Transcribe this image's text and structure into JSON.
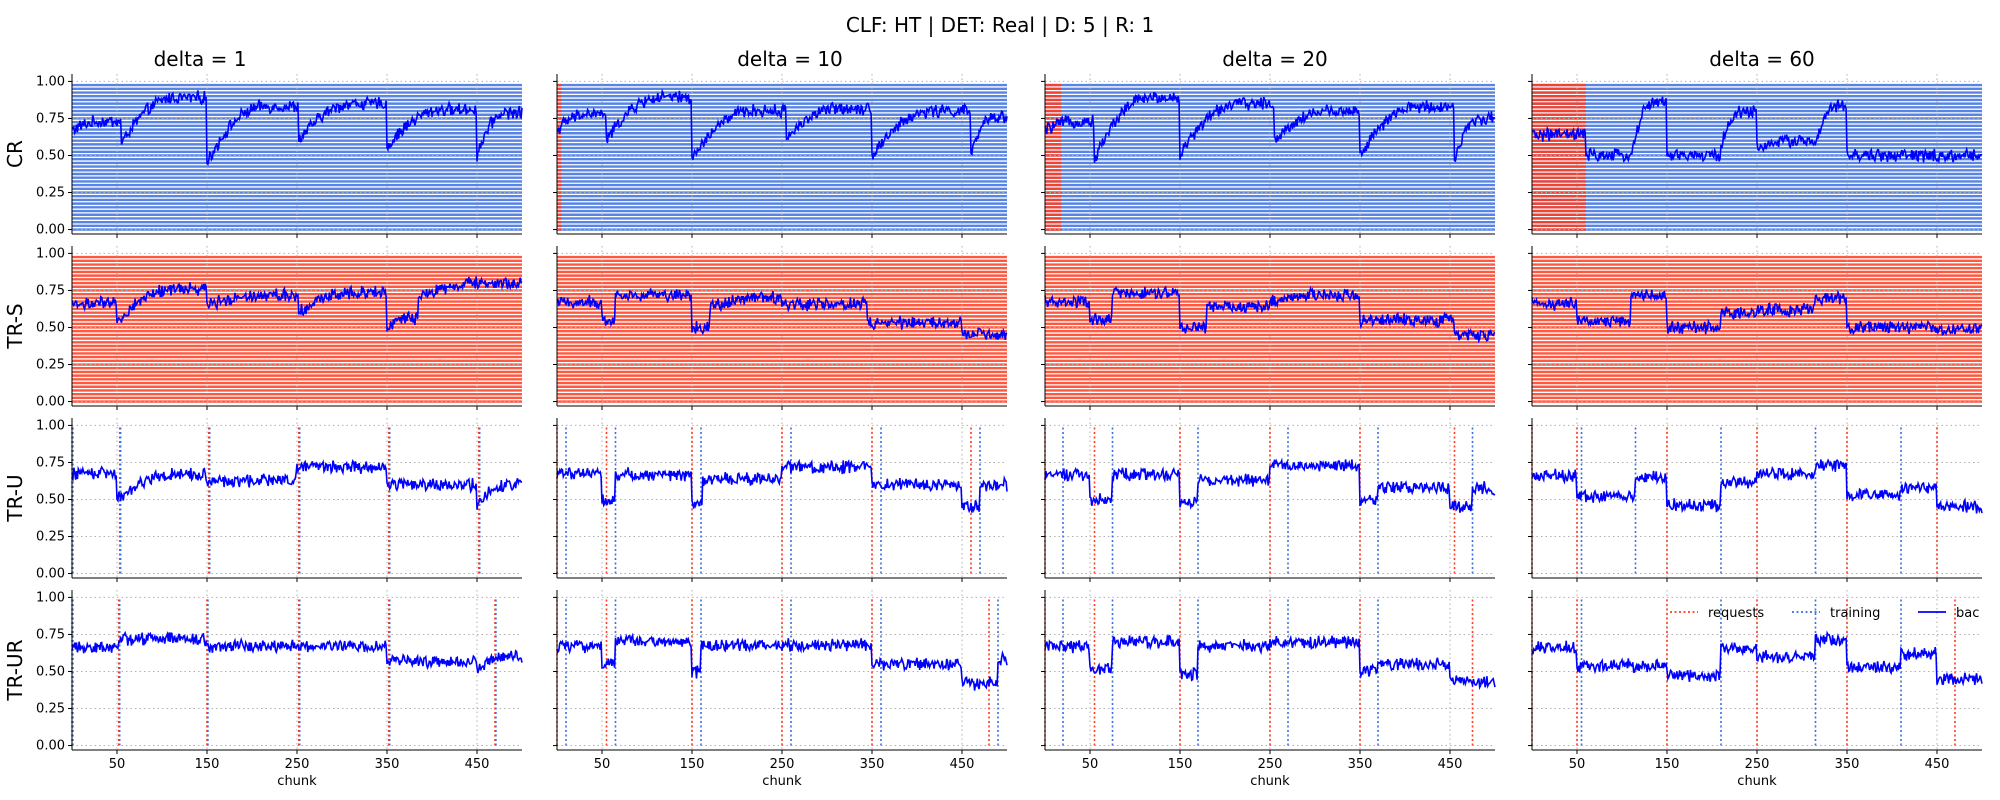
{
  "title": "CLF: HT | DET: Real | D: 5 | R: 1",
  "columns": [
    "delta = 1",
    "delta = 10",
    "delta = 20",
    "delta = 60"
  ],
  "rows": [
    "CR",
    "TR-S",
    "TR-U",
    "TR-UR"
  ],
  "xlabel": "chunk",
  "x_ticks": [
    "50",
    "150",
    "250",
    "350",
    "450"
  ],
  "y_ticks": [
    "0.00",
    "0.25",
    "0.50",
    "0.75",
    "1.00"
  ],
  "legend": {
    "requests": "requests",
    "training": "training",
    "bac": "bac"
  },
  "colors": {
    "requests": "#ff3b1f",
    "training": "#3b6fe0",
    "bac": "#0000ff",
    "grid": "#b0b0b0"
  },
  "chart_data": {
    "type": "line",
    "xlim": [
      0,
      500
    ],
    "ylim": [
      -0.03,
      1.05
    ],
    "grid": true,
    "legend_position": "top-right of bottom-right panel",
    "panels": [
      {
        "row": "CR",
        "column": "delta = 1",
        "shading": "training",
        "requests": [],
        "training": [],
        "bac_segments": [
          [
            0,
            0.67,
            0.73
          ],
          [
            55,
            0.58,
            0.89
          ],
          [
            150,
            0.45,
            0.83
          ],
          [
            252,
            0.6,
            0.85
          ],
          [
            350,
            0.55,
            0.81
          ],
          [
            450,
            0.5,
            0.79
          ]
        ]
      },
      {
        "row": "CR",
        "column": "delta = 10",
        "shading": "training",
        "shade_requests_until": 5,
        "requests": [],
        "training": [],
        "bac_segments": [
          [
            0,
            0.67,
            0.78
          ],
          [
            55,
            0.6,
            0.89
          ],
          [
            150,
            0.47,
            0.8
          ],
          [
            255,
            0.62,
            0.82
          ],
          [
            350,
            0.5,
            0.8
          ],
          [
            460,
            0.5,
            0.76
          ]
        ]
      },
      {
        "row": "CR",
        "column": "delta = 20",
        "shading": "training",
        "shade_requests_until": 18,
        "requests": [],
        "training": [],
        "bac_segments": [
          [
            0,
            0.67,
            0.73
          ],
          [
            55,
            0.47,
            0.89
          ],
          [
            150,
            0.5,
            0.85
          ],
          [
            255,
            0.6,
            0.8
          ],
          [
            350,
            0.5,
            0.83
          ],
          [
            455,
            0.47,
            0.75
          ]
        ]
      },
      {
        "row": "CR",
        "column": "delta = 60",
        "shading": "training",
        "shade_requests_until": 60,
        "requests": [],
        "training": [],
        "bac_segments": [
          [
            0,
            0.64,
            0.64
          ],
          [
            60,
            0.5,
            0.5
          ],
          [
            110,
            0.5,
            0.86
          ],
          [
            150,
            0.5,
            0.5
          ],
          [
            210,
            0.57,
            0.8
          ],
          [
            250,
            0.55,
            0.6
          ],
          [
            315,
            0.55,
            0.83
          ],
          [
            350,
            0.5,
            0.5
          ],
          [
            450,
            0.47,
            0.5
          ]
        ]
      },
      {
        "row": "TR-S",
        "column": "delta = 1",
        "shading": "requests",
        "requests": [],
        "training": [],
        "bac_segments": [
          [
            0,
            0.66,
            0.66
          ],
          [
            50,
            0.53,
            0.76
          ],
          [
            150,
            0.65,
            0.72
          ],
          [
            252,
            0.6,
            0.74
          ],
          [
            350,
            0.5,
            0.56
          ],
          [
            385,
            0.7,
            0.8
          ]
        ]
      },
      {
        "row": "TR-S",
        "column": "delta = 10",
        "shading": "requests",
        "requests": [],
        "training": [],
        "bac_segments": [
          [
            0,
            0.67,
            0.67
          ],
          [
            50,
            0.55,
            0.55
          ],
          [
            65,
            0.72,
            0.72
          ],
          [
            150,
            0.5,
            0.5
          ],
          [
            170,
            0.63,
            0.7
          ],
          [
            250,
            0.66,
            0.66
          ],
          [
            345,
            0.53,
            0.53
          ],
          [
            450,
            0.45,
            0.45
          ]
        ]
      },
      {
        "row": "TR-S",
        "column": "delta = 20",
        "shading": "requests",
        "requests": [],
        "training": [],
        "bac_segments": [
          [
            0,
            0.67,
            0.67
          ],
          [
            50,
            0.55,
            0.55
          ],
          [
            75,
            0.73,
            0.73
          ],
          [
            150,
            0.5,
            0.5
          ],
          [
            180,
            0.64,
            0.64
          ],
          [
            250,
            0.67,
            0.72
          ],
          [
            350,
            0.55,
            0.55
          ],
          [
            455,
            0.45,
            0.45
          ]
        ]
      },
      {
        "row": "TR-S",
        "column": "delta = 60",
        "shading": "requests",
        "requests": [],
        "training": [],
        "bac_segments": [
          [
            0,
            0.66,
            0.66
          ],
          [
            50,
            0.54,
            0.54
          ],
          [
            110,
            0.72,
            0.72
          ],
          [
            150,
            0.5,
            0.5
          ],
          [
            210,
            0.6,
            0.6
          ],
          [
            250,
            0.62,
            0.62
          ],
          [
            315,
            0.7,
            0.7
          ],
          [
            350,
            0.5,
            0.5
          ],
          [
            450,
            0.47,
            0.5
          ]
        ]
      },
      {
        "row": "TR-U",
        "column": "delta = 1",
        "shading": "none",
        "requests": [
          0,
          53,
          152,
          252,
          352,
          452
        ],
        "training": [
          1,
          54,
          153,
          253,
          353,
          453
        ],
        "bac_segments": [
          [
            0,
            0.68,
            0.68
          ],
          [
            50,
            0.5,
            0.67
          ],
          [
            150,
            0.62,
            0.63
          ],
          [
            250,
            0.72,
            0.72
          ],
          [
            350,
            0.6,
            0.6
          ],
          [
            450,
            0.47,
            0.6
          ]
        ]
      },
      {
        "row": "TR-U",
        "column": "delta = 10",
        "shading": "none",
        "requests": [
          0,
          55,
          150,
          250,
          350,
          460
        ],
        "training": [
          10,
          65,
          160,
          260,
          360,
          470
        ],
        "bac_segments": [
          [
            0,
            0.68,
            0.68
          ],
          [
            50,
            0.5,
            0.5
          ],
          [
            65,
            0.67,
            0.67
          ],
          [
            150,
            0.48,
            0.48
          ],
          [
            162,
            0.64,
            0.64
          ],
          [
            250,
            0.72,
            0.72
          ],
          [
            350,
            0.6,
            0.6
          ],
          [
            450,
            0.45,
            0.45
          ],
          [
            470,
            0.6,
            0.6
          ]
        ]
      },
      {
        "row": "TR-U",
        "column": "delta = 20",
        "shading": "none",
        "requests": [
          0,
          55,
          150,
          250,
          350,
          455
        ],
        "training": [
          20,
          75,
          170,
          270,
          370,
          475
        ],
        "bac_segments": [
          [
            0,
            0.67,
            0.67
          ],
          [
            50,
            0.5,
            0.5
          ],
          [
            75,
            0.67,
            0.67
          ],
          [
            150,
            0.48,
            0.48
          ],
          [
            170,
            0.63,
            0.63
          ],
          [
            250,
            0.73,
            0.73
          ],
          [
            350,
            0.5,
            0.5
          ],
          [
            370,
            0.58,
            0.58
          ],
          [
            450,
            0.45,
            0.45
          ],
          [
            475,
            0.58,
            0.58
          ]
        ]
      },
      {
        "row": "TR-U",
        "column": "delta = 60",
        "shading": "none",
        "requests": [
          0,
          50,
          150,
          250,
          350,
          450
        ],
        "training": [
          55,
          115,
          210,
          315,
          410
        ],
        "bac_segments": [
          [
            0,
            0.66,
            0.66
          ],
          [
            50,
            0.52,
            0.52
          ],
          [
            115,
            0.65,
            0.65
          ],
          [
            150,
            0.46,
            0.46
          ],
          [
            210,
            0.62,
            0.62
          ],
          [
            250,
            0.67,
            0.67
          ],
          [
            315,
            0.73,
            0.73
          ],
          [
            350,
            0.53,
            0.53
          ],
          [
            410,
            0.58,
            0.58
          ],
          [
            450,
            0.45,
            0.45
          ]
        ]
      },
      {
        "row": "TR-UR",
        "column": "delta = 1",
        "shading": "none",
        "requests": [
          0,
          52,
          150,
          252,
          352,
          470
        ],
        "training": [
          1,
          53,
          151,
          253,
          353,
          471
        ],
        "bac_segments": [
          [
            0,
            0.66,
            0.66
          ],
          [
            52,
            0.72,
            0.72
          ],
          [
            150,
            0.67,
            0.67
          ],
          [
            250,
            0.67,
            0.67
          ],
          [
            350,
            0.57,
            0.57
          ],
          [
            450,
            0.5,
            0.6
          ]
        ]
      },
      {
        "row": "TR-UR",
        "column": "delta = 10",
        "shading": "none",
        "requests": [
          0,
          55,
          150,
          250,
          350,
          480
        ],
        "training": [
          10,
          65,
          160,
          260,
          360,
          490
        ],
        "bac_segments": [
          [
            0,
            0.67,
            0.67
          ],
          [
            50,
            0.55,
            0.55
          ],
          [
            65,
            0.7,
            0.7
          ],
          [
            150,
            0.5,
            0.5
          ],
          [
            160,
            0.68,
            0.68
          ],
          [
            250,
            0.68,
            0.68
          ],
          [
            350,
            0.55,
            0.55
          ],
          [
            450,
            0.42,
            0.42
          ],
          [
            490,
            0.58,
            0.58
          ]
        ]
      },
      {
        "row": "TR-UR",
        "column": "delta = 20",
        "shading": "none",
        "requests": [
          0,
          55,
          150,
          250,
          350,
          475
        ],
        "training": [
          20,
          75,
          170,
          270,
          370
        ],
        "bac_segments": [
          [
            0,
            0.67,
            0.67
          ],
          [
            50,
            0.52,
            0.52
          ],
          [
            75,
            0.7,
            0.7
          ],
          [
            150,
            0.48,
            0.48
          ],
          [
            170,
            0.67,
            0.67
          ],
          [
            250,
            0.7,
            0.7
          ],
          [
            350,
            0.5,
            0.5
          ],
          [
            370,
            0.55,
            0.55
          ],
          [
            450,
            0.43,
            0.43
          ]
        ]
      },
      {
        "row": "TR-UR",
        "column": "delta = 60",
        "shading": "none",
        "requests": [
          0,
          50,
          150,
          250,
          350,
          470
        ],
        "training": [
          55,
          210,
          315,
          410
        ],
        "bac_segments": [
          [
            0,
            0.66,
            0.66
          ],
          [
            50,
            0.54,
            0.54
          ],
          [
            150,
            0.47,
            0.47
          ],
          [
            210,
            0.65,
            0.65
          ],
          [
            250,
            0.6,
            0.6
          ],
          [
            315,
            0.72,
            0.72
          ],
          [
            350,
            0.53,
            0.53
          ],
          [
            410,
            0.62,
            0.62
          ],
          [
            450,
            0.45,
            0.45
          ]
        ]
      }
    ]
  }
}
